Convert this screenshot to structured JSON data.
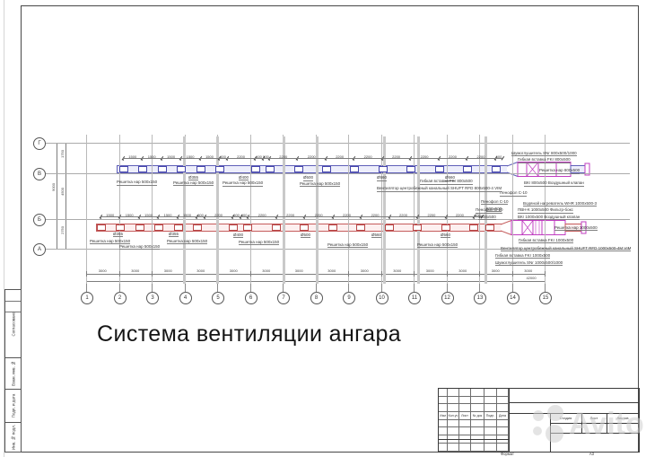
{
  "page": {
    "title": "Система вентиляции ангара"
  },
  "watermark": {
    "text": "Avito"
  },
  "frame": {
    "side": [
      "Согласовано",
      "Взам. инв. №",
      "Подп. и дата",
      "Инв. № подл."
    ]
  },
  "titleblock": {
    "header_cols": [
      "Изм",
      "Кол.уч",
      "Лист",
      "№ док",
      "Подп.",
      "Дата"
    ],
    "stage_cols": [
      "Стадия",
      "Лист",
      "Листов"
    ],
    "format_label": "Формат",
    "format_value": "А3"
  },
  "axes": {
    "rows": [
      "Г",
      "В",
      "Б",
      "А"
    ],
    "cols": [
      "1",
      "2",
      "3",
      "4",
      "5",
      "6",
      "7",
      "8",
      "9",
      "10",
      "11",
      "12",
      "13",
      "14",
      "15"
    ]
  },
  "dims": {
    "left_total": "9000",
    "left_segments": [
      "1750",
      "4500",
      "2750"
    ],
    "bottom_segments": [
      "3000",
      "3000",
      "3000",
      "3000",
      "3000",
      "3000",
      "3000",
      "3000",
      "3000",
      "3000",
      "3000",
      "3000",
      "3000",
      "3000"
    ],
    "bottom_total": "42000",
    "blue_chain": [
      "1500",
      "1500",
      "1500",
      "1500",
      "1500",
      "600",
      "2200",
      "600",
      "500",
      "2200",
      "2200",
      "2200",
      "2200",
      "2200",
      "2200",
      "2200",
      "2200",
      "600"
    ],
    "red_chain": [
      "1500",
      "1500",
      "1500",
      "1500",
      "1500",
      "600",
      "2200",
      "600",
      "600",
      "2200",
      "2200",
      "2200",
      "2200",
      "2200",
      "2200",
      "2200",
      "2200",
      "600"
    ]
  },
  "duct_labels": {
    "blue": [
      "Решетка нар 500х150",
      "Ø355",
      "Решетка нар 500х150",
      "Ø400",
      "Решетка нар 500х150",
      "Ø500",
      "Решетка нар 500х150",
      "Ø560",
      "Ø560"
    ],
    "red": [
      "Решетка нар 500х150",
      "Ø355",
      "Решетка нар 500х150",
      "Ø355",
      "Решетка нар 500х150",
      "Ø400",
      "Решетка нар 500х150",
      "Ø500",
      "Решетка нар 500х150",
      "Ø560",
      "Решетка нар 500х150",
      "Ø560"
    ]
  },
  "annotations": {
    "blue_right": [
      "Шумоглушитель SNr 800х500/1000",
      "Гибкая вставка FKr 800х500",
      "Решетка нар 800х500",
      "ВКr 800х500 Воздушный клапан",
      "Пенофол С-10",
      "Гибкая вставка FKr 800х500",
      "Вентилятор центробежный канальный SHUFT RFD 800х500-4 VIM",
      "Пенофол С-10",
      "800х500"
    ],
    "red_right": [
      "Водяной нагреватель WHR 1000х500-3",
      "ПВН-К 1000х500 Фильтр-бокс",
      "ВКr 1000х500 Воздушный клапан",
      "Пенофол С-10",
      "1000х500",
      "Решетка нар 1000х500",
      "Гибкая вставка FKr 1000х500",
      "Вентилятор центробежный канальный SHUFT RFD 1000х500-4М VIM",
      "Гибкая вставка FKr 1000х500",
      "Шумоглушитель SNr 1000х500/1000"
    ]
  }
}
